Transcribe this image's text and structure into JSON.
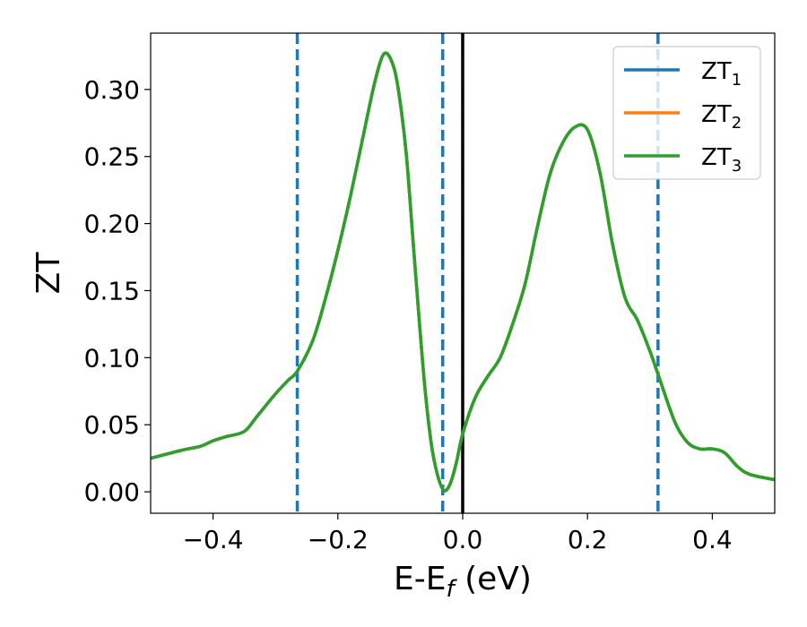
{
  "chart_data": {
    "type": "line",
    "xlabel_main": "E-E",
    "xlabel_sub": "f",
    "xlabel_unit": " (eV)",
    "ylabel": "ZT",
    "xlim": [
      -0.5,
      0.5
    ],
    "ylim": [
      -0.016,
      0.342
    ],
    "x_ticks": [
      -0.4,
      -0.2,
      0.0,
      0.2,
      0.4
    ],
    "x_tick_labels": [
      "−0.4",
      "−0.2",
      "0.0",
      "0.2",
      "0.4"
    ],
    "y_ticks": [
      0.0,
      0.05,
      0.1,
      0.15,
      0.2,
      0.25,
      0.3
    ],
    "y_tick_labels": [
      "0.00",
      "0.05",
      "0.10",
      "0.15",
      "0.20",
      "0.25",
      "0.30"
    ],
    "legend_position": "top-right",
    "series": [
      {
        "name": "ZT",
        "name_sub": "1",
        "color": "#1f77b4",
        "x": [
          -0.5,
          -0.45,
          -0.42,
          -0.4,
          -0.38,
          -0.35,
          -0.33,
          -0.3,
          -0.28,
          -0.265,
          -0.24,
          -0.22,
          -0.2,
          -0.18,
          -0.16,
          -0.14,
          -0.125,
          -0.11,
          -0.1,
          -0.09,
          -0.08,
          -0.07,
          -0.06,
          -0.05,
          -0.04,
          -0.03,
          -0.02,
          -0.01,
          0.0,
          0.02,
          0.04,
          0.06,
          0.08,
          0.1,
          0.12,
          0.14,
          0.16,
          0.18,
          0.2,
          0.22,
          0.24,
          0.26,
          0.28,
          0.3,
          0.315,
          0.34,
          0.36,
          0.38,
          0.4,
          0.42,
          0.44,
          0.46,
          0.5
        ],
        "y": [
          0.025,
          0.031,
          0.034,
          0.038,
          0.041,
          0.045,
          0.056,
          0.073,
          0.083,
          0.09,
          0.113,
          0.144,
          0.18,
          0.22,
          0.264,
          0.307,
          0.327,
          0.316,
          0.29,
          0.25,
          0.19,
          0.13,
          0.075,
          0.035,
          0.012,
          0.001,
          0.006,
          0.022,
          0.043,
          0.07,
          0.086,
          0.1,
          0.125,
          0.155,
          0.198,
          0.237,
          0.26,
          0.272,
          0.27,
          0.238,
          0.185,
          0.145,
          0.128,
          0.105,
          0.085,
          0.052,
          0.037,
          0.032,
          0.032,
          0.029,
          0.019,
          0.013,
          0.009
        ]
      },
      {
        "name": "ZT",
        "name_sub": "2",
        "color": "#ff7f0e",
        "x": [
          -0.5,
          -0.45,
          -0.42,
          -0.4,
          -0.38,
          -0.35,
          -0.33,
          -0.3,
          -0.28,
          -0.265,
          -0.24,
          -0.22,
          -0.2,
          -0.18,
          -0.16,
          -0.14,
          -0.125,
          -0.11,
          -0.1,
          -0.09,
          -0.08,
          -0.07,
          -0.06,
          -0.05,
          -0.04,
          -0.03,
          -0.02,
          -0.01,
          0.0,
          0.02,
          0.04,
          0.06,
          0.08,
          0.1,
          0.12,
          0.14,
          0.16,
          0.18,
          0.2,
          0.22,
          0.24,
          0.26,
          0.28,
          0.3,
          0.315,
          0.34,
          0.36,
          0.38,
          0.4,
          0.42,
          0.44,
          0.46,
          0.5
        ],
        "y": [
          0.025,
          0.031,
          0.034,
          0.038,
          0.041,
          0.045,
          0.056,
          0.073,
          0.083,
          0.09,
          0.113,
          0.144,
          0.18,
          0.22,
          0.264,
          0.307,
          0.327,
          0.316,
          0.29,
          0.25,
          0.19,
          0.13,
          0.075,
          0.035,
          0.012,
          0.001,
          0.006,
          0.022,
          0.043,
          0.07,
          0.086,
          0.1,
          0.125,
          0.155,
          0.198,
          0.237,
          0.26,
          0.272,
          0.27,
          0.238,
          0.185,
          0.145,
          0.128,
          0.105,
          0.085,
          0.052,
          0.037,
          0.032,
          0.032,
          0.029,
          0.019,
          0.013,
          0.009
        ]
      },
      {
        "name": "ZT",
        "name_sub": "3",
        "color": "#2ca02c",
        "x": [
          -0.5,
          -0.45,
          -0.42,
          -0.4,
          -0.38,
          -0.35,
          -0.33,
          -0.3,
          -0.28,
          -0.265,
          -0.24,
          -0.22,
          -0.2,
          -0.18,
          -0.16,
          -0.14,
          -0.125,
          -0.11,
          -0.1,
          -0.09,
          -0.08,
          -0.07,
          -0.06,
          -0.05,
          -0.04,
          -0.03,
          -0.02,
          -0.01,
          0.0,
          0.02,
          0.04,
          0.06,
          0.08,
          0.1,
          0.12,
          0.14,
          0.16,
          0.18,
          0.2,
          0.22,
          0.24,
          0.26,
          0.28,
          0.3,
          0.315,
          0.34,
          0.36,
          0.38,
          0.4,
          0.42,
          0.44,
          0.46,
          0.5
        ],
        "y": [
          0.025,
          0.031,
          0.034,
          0.038,
          0.041,
          0.045,
          0.056,
          0.073,
          0.083,
          0.09,
          0.113,
          0.144,
          0.18,
          0.22,
          0.264,
          0.307,
          0.327,
          0.316,
          0.29,
          0.25,
          0.19,
          0.13,
          0.075,
          0.035,
          0.012,
          0.001,
          0.006,
          0.022,
          0.043,
          0.07,
          0.086,
          0.1,
          0.125,
          0.155,
          0.198,
          0.237,
          0.26,
          0.272,
          0.27,
          0.238,
          0.185,
          0.145,
          0.128,
          0.105,
          0.085,
          0.052,
          0.037,
          0.032,
          0.032,
          0.029,
          0.019,
          0.013,
          0.009
        ]
      }
    ],
    "vertical_lines": [
      {
        "x": -0.265,
        "color": "#1f77b4",
        "style": "dashed"
      },
      {
        "x": -0.032,
        "color": "#1f77b4",
        "style": "dashed"
      },
      {
        "x": 0.0,
        "color": "#000000",
        "style": "solid"
      },
      {
        "x": 0.313,
        "color": "#1f77b4",
        "style": "dashed"
      }
    ]
  }
}
